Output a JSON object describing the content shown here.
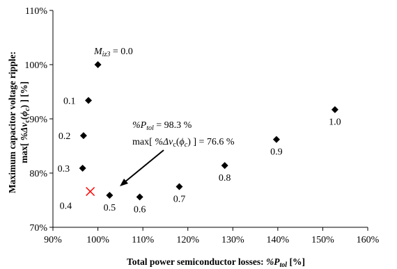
{
  "chart_data": {
    "type": "scatter",
    "title": "",
    "xlabel": {
      "main": "Total power semiconductor losses: ",
      "sym": "%P",
      "sub": "tol",
      "unit": " [%]"
    },
    "ylabel": {
      "line1": "Maximum capacitor voltage ripple:",
      "pre": "max[ ",
      "sym": "%Δv",
      "sub": "c",
      "open": "(",
      "phi": "ϕ",
      "phisub": "c",
      "close": ") ] [%]"
    },
    "xlim": [
      90,
      160
    ],
    "ylim": [
      70,
      110
    ],
    "xticks": [
      "90%",
      "100%",
      "110%",
      "120%",
      "130%",
      "140%",
      "150%",
      "160%"
    ],
    "yticks": [
      "70%",
      "80%",
      "90%",
      "100%",
      "110%"
    ],
    "grid": false,
    "series": [
      {
        "marker": "diamond",
        "color": "#000000",
        "points": [
          {
            "x": 100.0,
            "y": 100.0,
            "label": "M_iz3 = 0.0"
          },
          {
            "x": 97.9,
            "y": 93.4,
            "label": "0.1"
          },
          {
            "x": 96.8,
            "y": 86.9,
            "label": "0.2"
          },
          {
            "x": 96.6,
            "y": 80.9,
            "label": "0.3"
          },
          {
            "x": 102.6,
            "y": 75.9,
            "label": "0.5"
          },
          {
            "x": 109.3,
            "y": 75.6,
            "label": "0.6"
          },
          {
            "x": 118.1,
            "y": 77.5,
            "label": "0.7"
          },
          {
            "x": 128.2,
            "y": 81.4,
            "label": "0.8"
          },
          {
            "x": 139.7,
            "y": 86.2,
            "label": "0.9"
          },
          {
            "x": 152.7,
            "y": 91.7,
            "label": "1.0"
          }
        ]
      },
      {
        "marker": "x",
        "color": "#ff0000",
        "points": [
          {
            "x": 98.3,
            "y": 76.6,
            "label": "0.4"
          }
        ]
      }
    ],
    "label_M": {
      "sym": "M",
      "sub": "iz3",
      "rest": " = 0.0"
    },
    "annotation": {
      "line1": {
        "sym": "%P",
        "sub": "tol",
        "rest": " = 98.3 %"
      },
      "line2": {
        "pre": "max[ ",
        "sym": "%Δv",
        "sub": "c",
        "open": "(",
        "phi": "ϕ",
        "phisub": "c",
        "rest": ") ] = 76.6 %"
      }
    }
  }
}
